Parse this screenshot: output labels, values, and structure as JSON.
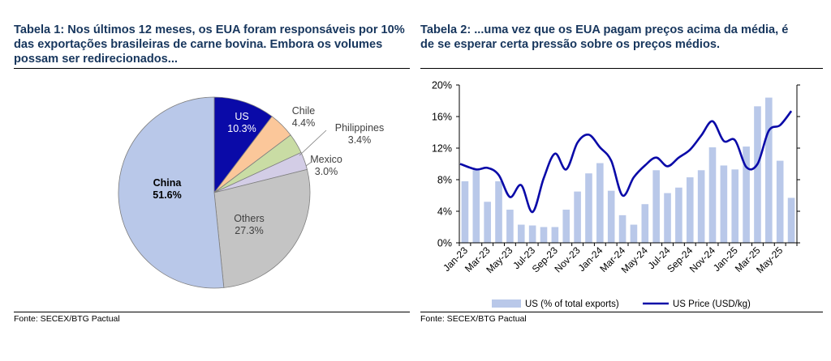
{
  "left": {
    "title": "Tabela 1: Nos últimos 12 meses, os EUA foram responsáveis por 10% das exportações brasileiras de carne bovina. Embora os volumes possam ser redirecionados...",
    "source": "Fonte: SECEX/BTG Pactual"
  },
  "right": {
    "title": "Tabela 2: ...uma vez que os EUA pagam preços acima da média, é de se esperar certa pressão sobre os preços médios.",
    "source": "Fonte: SECEX/BTG Pactual"
  },
  "chart_data": [
    {
      "type": "pie",
      "slices": [
        {
          "label": "US",
          "pct_label": "10.3%",
          "value": 10.3,
          "color": "#0a0aa8",
          "text_color": "#ffffff"
        },
        {
          "label": "Chile",
          "pct_label": "4.4%",
          "value": 4.4,
          "color": "#fbc79a",
          "text_color": "#404040"
        },
        {
          "label": "Philippines",
          "pct_label": "3.4%",
          "value": 3.4,
          "color": "#c9dca4",
          "text_color": "#404040"
        },
        {
          "label": "Mexico",
          "pct_label": "3.0%",
          "value": 3.0,
          "color": "#d3cde6",
          "text_color": "#404040"
        },
        {
          "label": "Others",
          "pct_label": "27.3%",
          "value": 27.3,
          "color": "#c4c4c4",
          "text_color": "#404040"
        },
        {
          "label": "China",
          "pct_label": "51.6%",
          "value": 51.6,
          "color": "#b9c8e9",
          "text_color": "#000000"
        }
      ]
    },
    {
      "type": "bar+line",
      "x_tick_labels": [
        "Jan-23",
        "Mar-23",
        "May-23",
        "Jul-23",
        "Sep-23",
        "Nov-23",
        "Jan-24",
        "Mar-24",
        "May-24",
        "Jul-24",
        "Sep-24",
        "Nov-24",
        "Jan-25",
        "Mar-25",
        "May-25"
      ],
      "y_ticks": [
        "0%",
        "4%",
        "8%",
        "12%",
        "16%",
        "20%"
      ],
      "ylim": [
        0,
        20
      ],
      "series": [
        {
          "name": "US (% of total exports)",
          "kind": "bar",
          "color": "#b9c8e9",
          "x": [
            "Jan-23",
            "Feb-23",
            "Mar-23",
            "Apr-23",
            "May-23",
            "Jun-23",
            "Jul-23",
            "Aug-23",
            "Sep-23",
            "Oct-23",
            "Nov-23",
            "Dec-23",
            "Jan-24",
            "Feb-24",
            "Mar-24",
            "Apr-24",
            "May-24",
            "Jun-24",
            "Jul-24",
            "Aug-24",
            "Sep-24",
            "Oct-24",
            "Nov-24",
            "Dec-24",
            "Jan-25",
            "Feb-25",
            "Mar-25",
            "Apr-25",
            "May-25",
            "Jun-25"
          ],
          "values": [
            7.8,
            9.2,
            5.2,
            7.8,
            4.2,
            2.3,
            2.2,
            2.0,
            2.0,
            4.2,
            6.5,
            8.8,
            10.1,
            6.6,
            3.5,
            2.3,
            4.9,
            9.2,
            6.3,
            7.0,
            8.3,
            9.2,
            12.1,
            9.8,
            9.3,
            12.2,
            17.3,
            18.4,
            10.4,
            5.7
          ]
        },
        {
          "name": "US Price (USD/kg)",
          "kind": "line",
          "color": "#0a0aa8",
          "x": [
            "Jan-23",
            "Feb-23",
            "Mar-23",
            "Apr-23",
            "May-23",
            "Jun-23",
            "Jul-23",
            "Aug-23",
            "Sep-23",
            "Oct-23",
            "Nov-23",
            "Dec-23",
            "Jan-24",
            "Feb-24",
            "Mar-24",
            "Apr-24",
            "May-24",
            "Jun-24",
            "Jul-24",
            "Aug-24",
            "Sep-24",
            "Oct-24",
            "Nov-24",
            "Dec-24",
            "Jan-25",
            "Feb-25",
            "Mar-25",
            "Apr-25",
            "May-25",
            "Jun-25"
          ],
          "values": [
            10.0,
            9.3,
            9.5,
            8.6,
            5.8,
            7.3,
            3.9,
            8.2,
            11.3,
            9.3,
            12.7,
            13.7,
            12.1,
            10.4,
            6.0,
            8.3,
            9.8,
            10.8,
            9.7,
            10.8,
            11.8,
            13.6,
            15.4,
            12.9,
            13.0,
            9.6,
            10.0,
            14.2,
            14.9,
            16.7
          ]
        }
      ],
      "legend_position": "bottom"
    }
  ]
}
